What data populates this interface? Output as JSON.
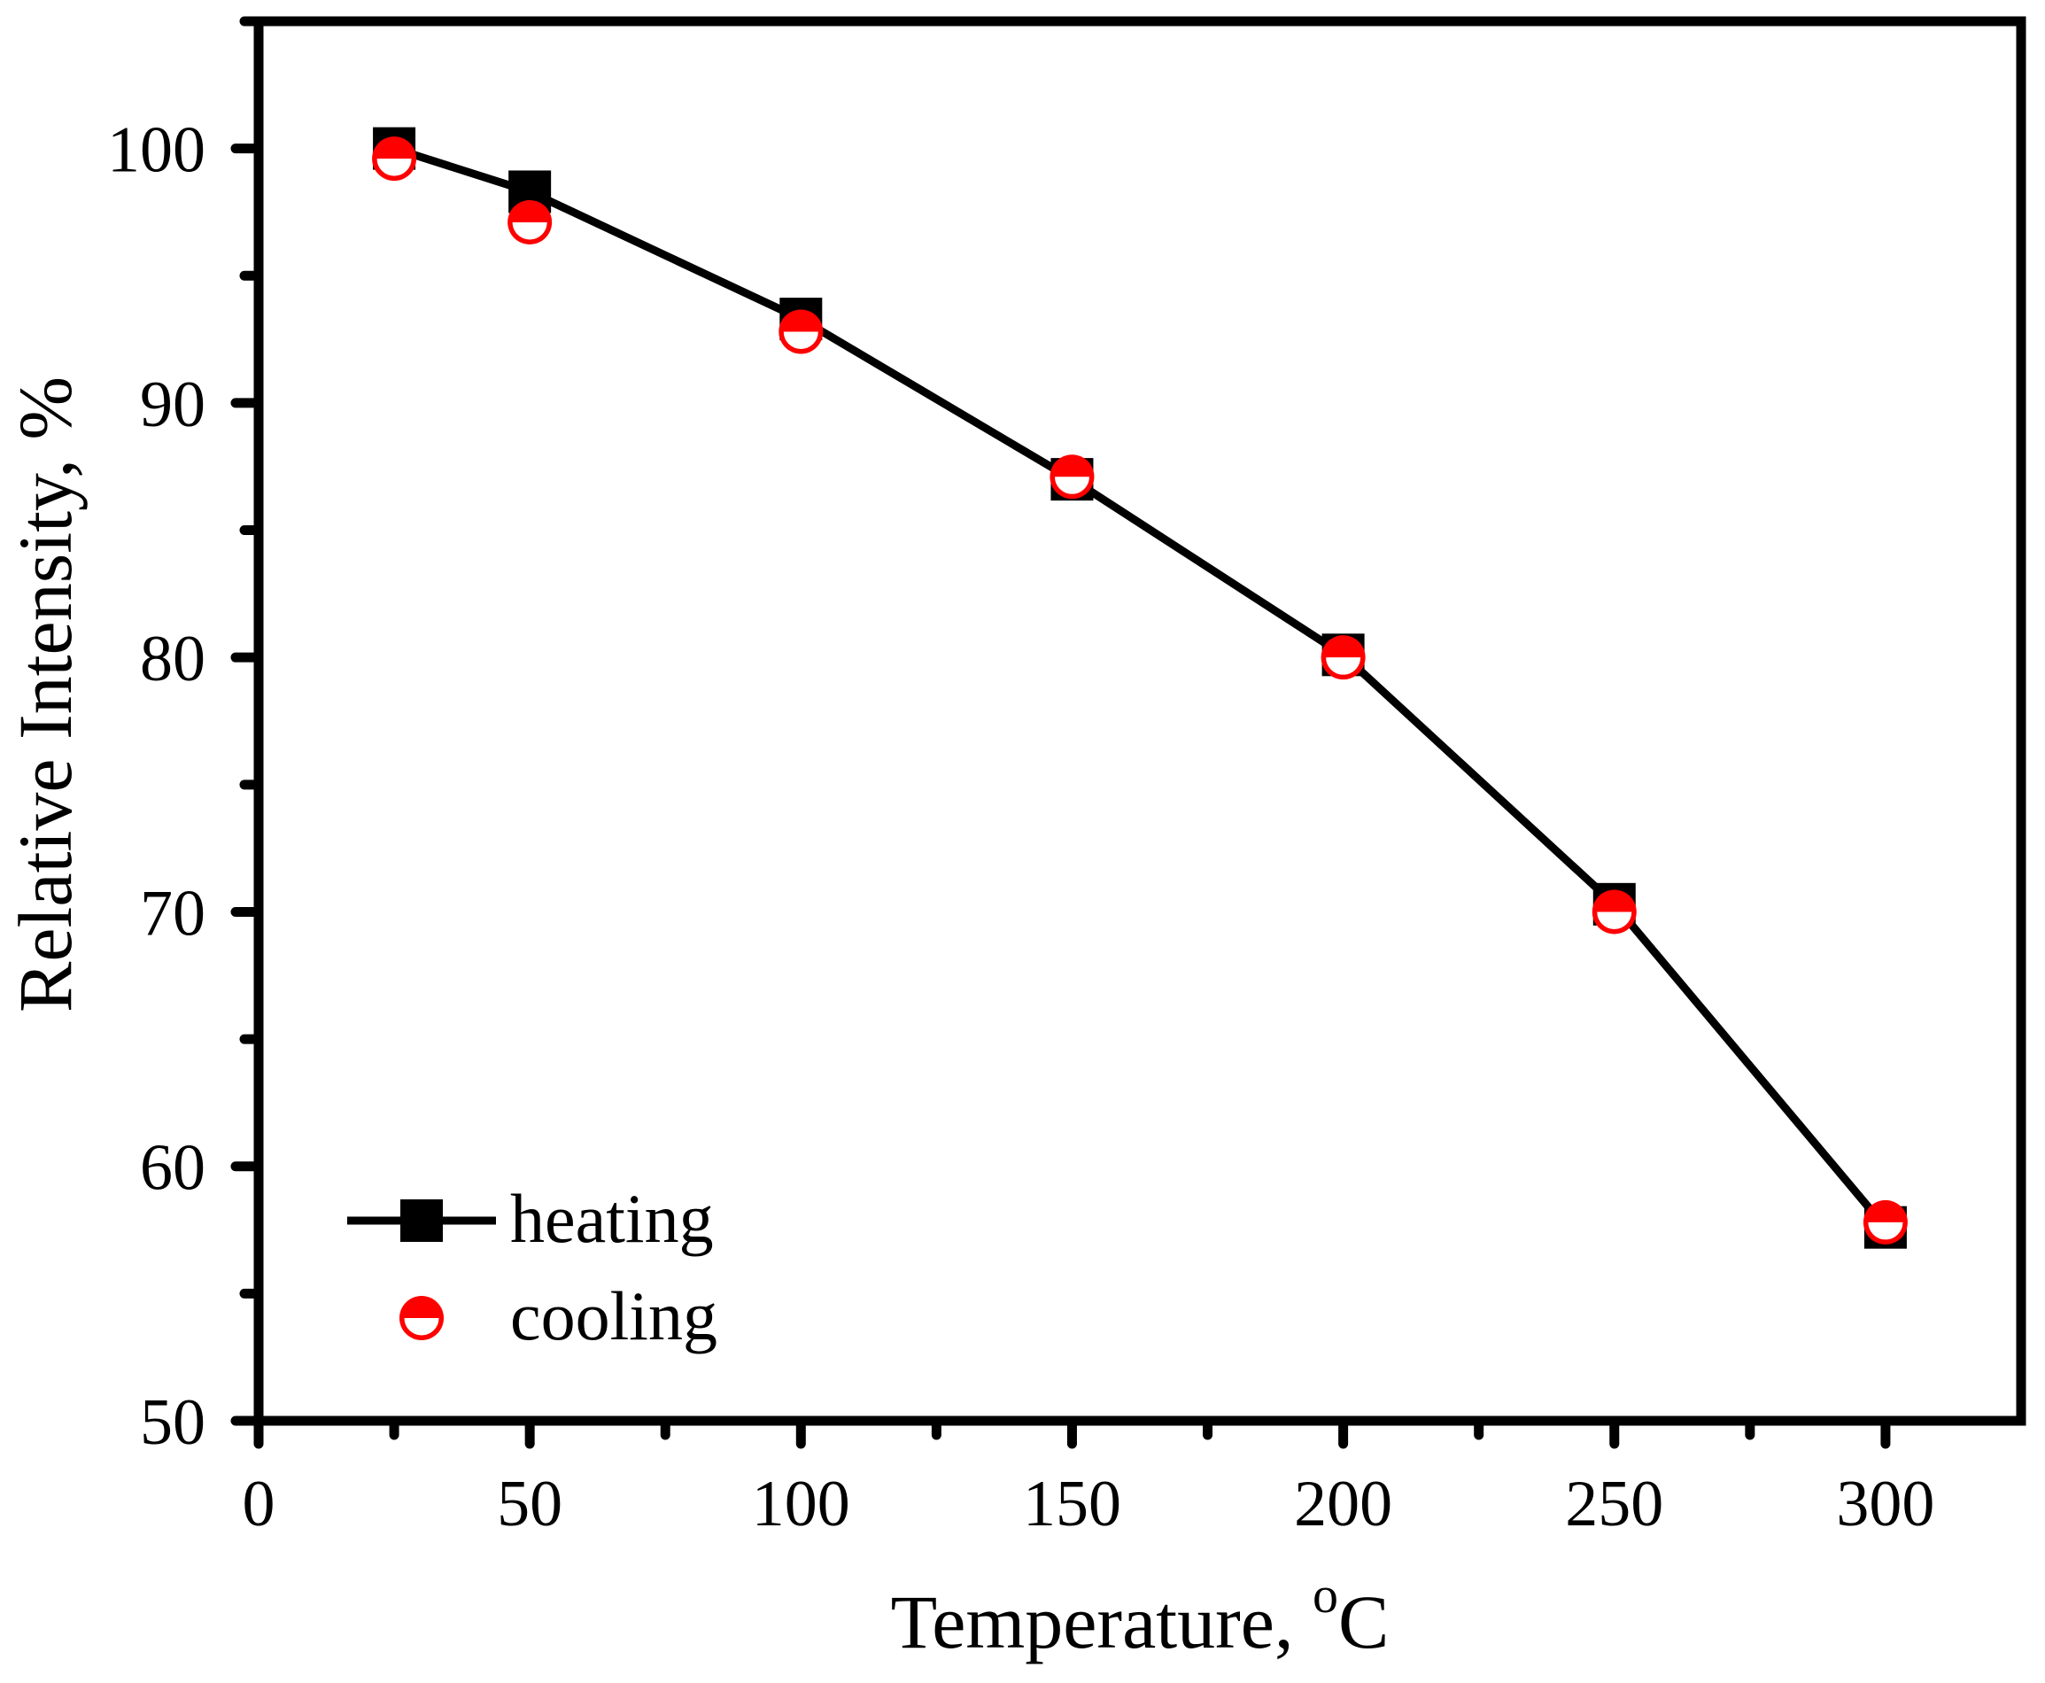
{
  "chart_data": {
    "type": "line",
    "title": "",
    "xlabel": "Temperature, ",
    "xlabel_superscript": "o",
    "xlabel_unit": "C",
    "ylabel": "Relative Intensity, %",
    "xlim": [
      0,
      325
    ],
    "ylim": [
      50,
      105
    ],
    "x_ticks": [
      "0",
      "50",
      "100",
      "150",
      "200",
      "250",
      "300"
    ],
    "y_ticks": [
      "50",
      "60",
      "70",
      "80",
      "90",
      "100"
    ],
    "legend_position": "bottom-left",
    "series": [
      {
        "name": "heating",
        "marker": "filled-square",
        "line": true,
        "color": "#000000",
        "x": [
          25,
          50,
          100,
          150,
          200,
          250,
          300
        ],
        "y": [
          100.0,
          98.3,
          93.3,
          87.0,
          80.1,
          70.3,
          57.6
        ]
      },
      {
        "name": "cooling",
        "marker": "half-filled-circle",
        "line": false,
        "color": "#ff0000",
        "x": [
          25,
          50,
          100,
          150,
          200,
          250,
          300
        ],
        "y": [
          99.6,
          97.1,
          92.8,
          87.1,
          80.0,
          70.0,
          57.8
        ]
      }
    ]
  }
}
